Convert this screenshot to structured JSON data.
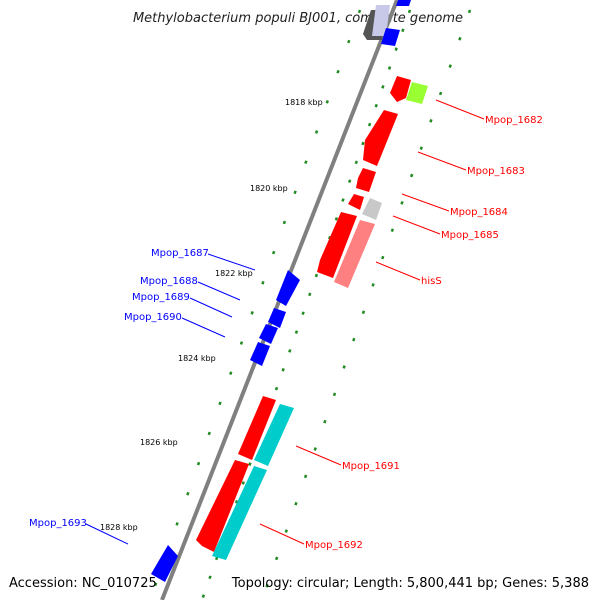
{
  "title": "Methylobacterium populi BJ001, complete genome",
  "accession": "Accession: NC_010725",
  "summary": "Topology: circular; Length: 5,800,441 bp; Genes: 5,388",
  "ticks": [
    "1818 kbp",
    "1820 kbp",
    "1822 kbp",
    "1824 kbp",
    "1826 kbp",
    "1828 kbp"
  ],
  "colors": {
    "forward": "#ff0000",
    "reverse": "#0000ff",
    "rna": "#00cccc",
    "other": "#999999",
    "lime": "#99ff33",
    "pink": "#ff8080",
    "backbone": "#808080",
    "gc": "#228b22"
  },
  "forward_labels": [
    "Mpop_1682",
    "Mpop_1683",
    "Mpop_1684",
    "Mpop_1685",
    "hisS",
    "Mpop_1691",
    "Mpop_1692"
  ],
  "reverse_labels": [
    "Mpop_1687",
    "Mpop_1688",
    "Mpop_1689",
    "Mpop_1690",
    "Mpop_1693"
  ]
}
